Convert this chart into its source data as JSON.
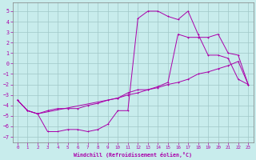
{
  "xlabel": "Windchill (Refroidissement éolien,°C)",
  "xlim": [
    -0.5,
    23.5
  ],
  "ylim": [
    -7.5,
    5.8
  ],
  "xticks": [
    0,
    1,
    2,
    3,
    4,
    5,
    6,
    7,
    8,
    9,
    10,
    11,
    12,
    13,
    14,
    15,
    16,
    17,
    18,
    19,
    20,
    21,
    22,
    23
  ],
  "yticks": [
    5,
    4,
    3,
    2,
    1,
    0,
    -1,
    -2,
    -3,
    -4,
    -5,
    -6,
    -7
  ],
  "bg_color": "#c8ecec",
  "line_color": "#aa00aa",
  "grid_color": "#a0c8c8",
  "line1_x": [
    0,
    1,
    2,
    3,
    4,
    5,
    6,
    7,
    8,
    9,
    10,
    11,
    12,
    13,
    14,
    15,
    16,
    17,
    18,
    19,
    20,
    21,
    22,
    23
  ],
  "line1_y": [
    -3.5,
    -4.5,
    -4.8,
    -6.5,
    -6.5,
    -6.3,
    -6.3,
    -6.5,
    -6.3,
    -5.8,
    -4.5,
    -4.5,
    4.3,
    5.0,
    5.0,
    4.5,
    4.2,
    5.0,
    2.8,
    0.8,
    0.8,
    0.5,
    -1.5,
    -2.0
  ],
  "line2_x": [
    0,
    1,
    2,
    3,
    4,
    5,
    6,
    7,
    8,
    9,
    10,
    11,
    12,
    13,
    14,
    15,
    16,
    17,
    18,
    19,
    20,
    21,
    22,
    23
  ],
  "line2_y": [
    -3.5,
    -4.5,
    -4.8,
    -4.5,
    -4.3,
    -4.3,
    -4.3,
    -4.0,
    -3.8,
    -3.5,
    -3.3,
    -3.0,
    -2.8,
    -2.5,
    -2.3,
    -2.0,
    -1.8,
    -1.5,
    -1.0,
    -0.8,
    -0.5,
    -0.2,
    0.2,
    -2.0
  ],
  "line3_x": [
    0,
    1,
    2,
    10,
    11,
    12,
    13,
    14,
    15,
    16,
    17,
    18,
    19,
    20,
    21,
    22,
    23
  ],
  "line3_y": [
    -3.5,
    -4.5,
    -4.8,
    -3.3,
    -2.8,
    -2.5,
    -2.5,
    -2.2,
    -1.8,
    2.8,
    2.5,
    2.5,
    2.5,
    2.8,
    1.0,
    0.8,
    -2.0
  ]
}
